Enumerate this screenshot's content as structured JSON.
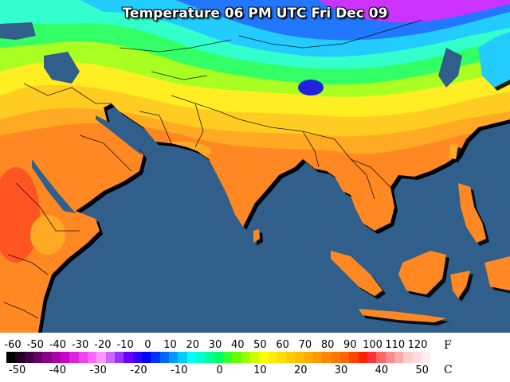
{
  "map": {
    "title": "Temperature 06 PM UTC Fri Dec 09",
    "colors": {
      "ocean": "#2f5f8a",
      "magenta": "#cc33ff",
      "blue_deep": "#2222dd",
      "blue": "#2277ff",
      "cyan": "#22ccff",
      "aqua": "#33ffcc",
      "green": "#33ff66",
      "lime": "#aaff22",
      "yellow": "#ffee22",
      "gold": "#ffcc22",
      "orange_light": "#ffaa22",
      "orange": "#ff8822",
      "red_orange": "#ff5522"
    }
  },
  "legend": {
    "fahrenheit_ticks": [
      "-60",
      "-50",
      "-40",
      "-30",
      "-20",
      "-10",
      "0",
      "10",
      "20",
      "30",
      "40",
      "50",
      "60",
      "70",
      "80",
      "90",
      "100",
      "110",
      "120"
    ],
    "fahrenheit_unit": "F",
    "celsius_ticks": [
      "-50",
      "-40",
      "-30",
      "-20",
      "-10",
      "0",
      "10",
      "20",
      "30",
      "40",
      "50"
    ],
    "celsius_unit": "C",
    "colors": [
      "#000000",
      "#220022",
      "#440044",
      "#660066",
      "#880088",
      "#aa00aa",
      "#cc00cc",
      "#dd22dd",
      "#ee44ee",
      "#ff66ff",
      "#ff99ff",
      "#cc66ff",
      "#9933ff",
      "#6600ff",
      "#3300ff",
      "#0000ff",
      "#0033ff",
      "#0066ff",
      "#0099ff",
      "#00ccff",
      "#00ffff",
      "#00ffcc",
      "#00ff99",
      "#00ff66",
      "#33ff33",
      "#66ff00",
      "#99ff00",
      "#ccff00",
      "#ffff00",
      "#ffee00",
      "#ffdd00",
      "#ffcc00",
      "#ffbb00",
      "#ffaa00",
      "#ff9900",
      "#ff8800",
      "#ff7700",
      "#ff6600",
      "#ff4400",
      "#ff2200",
      "#ff3333",
      "#ff6666",
      "#ff8888",
      "#ffaaaa",
      "#ffcccc",
      "#ffdddd",
      "#ffeeee",
      "#ffffff"
    ]
  }
}
